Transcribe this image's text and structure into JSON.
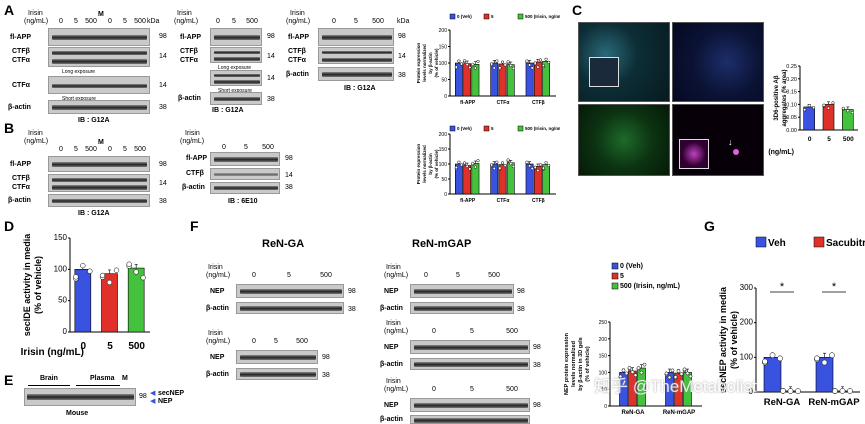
{
  "panels": {
    "A": "A",
    "B": "B",
    "C": "C",
    "D": "D",
    "E": "E",
    "F": "F",
    "G": "G"
  },
  "common": {
    "irisin_label": "Irisin",
    "irisin_unit": "(ng/mL)",
    "doses": [
      "0",
      "5",
      "500"
    ],
    "kda": "kDa",
    "M": "M",
    "mw": {
      "m98": "98",
      "m14": "14",
      "m38": "38"
    }
  },
  "panelA": {
    "blot1_rows": [
      "fl-APP",
      "CTFβ",
      "CTFα",
      "CTFα",
      "β-actin"
    ],
    "long_exposure": "Long exposure",
    "short_exposure": "Short exposure",
    "caption1": "IB : G12A",
    "blot2_rows": [
      "fl-APP",
      "CTFβ",
      "CTFα",
      "β-actin"
    ],
    "caption2": "IB : G12A",
    "blot3_rows": [
      "fl-APP",
      "CTFβ",
      "CTFα",
      "β-actin"
    ],
    "caption3": "IB : G12A",
    "long_exposure2": "Long exposure",
    "short_exposure2": "Short exposure"
  },
  "panelB": {
    "blot1_rows": [
      "fl-APP",
      "CTFβ",
      "CTFα",
      "β-actin"
    ],
    "caption1": "IB : G12A",
    "blot2_rows": [
      "fl-APP",
      "CTFβ",
      "β-actin"
    ],
    "caption2": "IB : 6E10"
  },
  "legend_abc": [
    "0 (Veh)",
    "5",
    "500 (Irisin, ng/mL)"
  ],
  "colors": {
    "veh": "#3a52e0",
    "five": "#e0302a",
    "five_hundred": "#44c23e",
    "sac": "#e0302a"
  },
  "chart_data": [
    {
      "id": "A-bar",
      "type": "bar",
      "categories": [
        "fl-APP",
        "CTFα",
        "CTFβ"
      ],
      "series": [
        {
          "name": "0 (Veh)",
          "values": [
            100,
            100,
            100
          ]
        },
        {
          "name": "5",
          "values": [
            98,
            97,
            103
          ]
        },
        {
          "name": "500 (Irisin, ng/mL)",
          "values": [
            96,
            95,
            105
          ]
        }
      ],
      "ylabel": "Protein expression levels normalized by β-actin (% of vehicle)",
      "ylim": [
        0,
        200
      ],
      "yticks": [
        "0",
        "50",
        "100",
        "150",
        "200"
      ]
    },
    {
      "id": "B-bar",
      "type": "bar",
      "categories": [
        "fl-APP",
        "CTFα",
        "CTFβ"
      ],
      "series": [
        {
          "name": "0 (Veh)",
          "values": [
            100,
            100,
            100
          ]
        },
        {
          "name": "5",
          "values": [
            95,
            98,
            92
          ]
        },
        {
          "name": "500 (Irisin, ng/mL)",
          "values": [
            102,
            104,
            98
          ]
        }
      ],
      "ylabel": "Protein expression levels normalized by β-actin (% of vehicle)",
      "ylim": [
        0,
        200
      ],
      "yticks": [
        "0",
        "50",
        "100",
        "150",
        "200"
      ]
    },
    {
      "id": "C-bar",
      "type": "bar",
      "categories": [
        "0",
        "5",
        "500"
      ],
      "values": [
        0.09,
        0.1,
        0.08
      ],
      "ylabel": "3D6-positive Aβ aggregates (% area)",
      "ylim": [
        0,
        0.25
      ],
      "yticks": [
        "0.00",
        "0.05",
        "0.10",
        "0.15",
        "0.20",
        "0.25"
      ],
      "xlabel": "Irisin (ng/mL)"
    },
    {
      "id": "D-bar",
      "type": "bar",
      "categories": [
        "0",
        "5",
        "500"
      ],
      "values": [
        100,
        93,
        102
      ],
      "ylabel": "secIDE activity in media (% of vehicle)",
      "ylim": [
        0,
        150
      ],
      "yticks": [
        "0",
        "50",
        "100",
        "150"
      ],
      "xlabel": "Irisin (ng/mL)"
    },
    {
      "id": "F-bar",
      "type": "bar",
      "categories": [
        "ReN-GA",
        "ReN-mGAP"
      ],
      "series": [
        {
          "name": "0 (Veh)",
          "values": [
            100,
            100
          ]
        },
        {
          "name": "5",
          "values": [
            104,
            98
          ]
        },
        {
          "name": "500 (Irisin, ng/mL)",
          "values": [
            113,
            100
          ]
        }
      ],
      "ylabel": "NEP protein expression levels normalized by β-actin in 3D gels (% of vehicle)",
      "ylim": [
        0,
        250
      ],
      "yticks": [
        "0",
        "50",
        "100",
        "150",
        "200",
        "250"
      ]
    },
    {
      "id": "G-bar",
      "type": "bar",
      "categories": [
        "ReN-GA",
        "ReN-mGAP"
      ],
      "series": [
        {
          "name": "Veh",
          "values": [
            100,
            100
          ]
        },
        {
          "name": "Sacubitril",
          "values": [
            3,
            3
          ]
        }
      ],
      "ylabel": "secNEP activity in media (% of vehicle)",
      "ylim": [
        0,
        300
      ],
      "yticks": [
        "0",
        "100",
        "200",
        "300"
      ],
      "significance": [
        "*",
        "*"
      ]
    }
  ],
  "panelE": {
    "brain": "Brain",
    "plasma": "Plasma",
    "M": "M",
    "mouse": "Mouse",
    "secNEP": "secNEP",
    "NEP": "NEP",
    "mw98": "98"
  },
  "panelF": {
    "renga": "ReN-GA",
    "renmgap": "ReN-mGAP",
    "nep": "NEP",
    "bactin": "β-actin"
  },
  "panelG": {
    "legend": [
      "Veh",
      "Sacubitril"
    ]
  },
  "watermark": "知乎 @TheMetabolist"
}
